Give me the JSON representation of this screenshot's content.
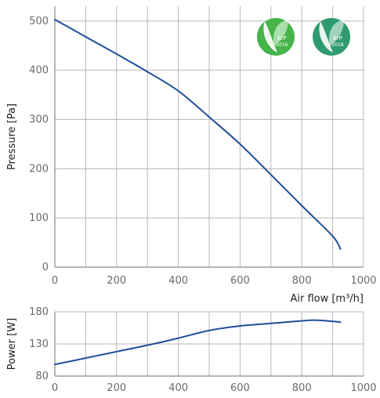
{
  "chart_data": [
    {
      "type": "line",
      "xlabel": "Air flow [m³/h]",
      "ylabel": "Pressure [Pa]",
      "xlim": [
        0,
        1000
      ],
      "ylim": [
        0,
        530
      ],
      "x_ticks": [
        "0",
        "200",
        "400",
        "600",
        "800",
        "1000"
      ],
      "y_ticks": [
        "0",
        "100",
        "200",
        "300",
        "400",
        "500"
      ],
      "grid": true,
      "series": [
        {
          "color": "#1f4f9a",
          "x": [
            0,
            100,
            200,
            300,
            400,
            500,
            600,
            700,
            800,
            900,
            925
          ],
          "y": [
            503,
            468,
            433,
            397,
            358,
            305,
            250,
            188,
            125,
            63,
            37
          ]
        }
      ]
    },
    {
      "type": "line",
      "xlabel": "",
      "ylabel": "Power [W]",
      "xlim": [
        0,
        1000
      ],
      "ylim": [
        80,
        180
      ],
      "x_ticks": [
        "0",
        "200",
        "400",
        "600",
        "800",
        "1000"
      ],
      "y_ticks": [
        "80",
        "130",
        "180"
      ],
      "grid": true,
      "series": [
        {
          "color": "#1f4f9a",
          "x": [
            0,
            100,
            200,
            300,
            400,
            500,
            600,
            700,
            800,
            850,
            925
          ],
          "y": [
            98,
            108,
            118,
            128,
            139,
            151,
            158,
            162,
            166,
            167,
            164
          ]
        }
      ]
    }
  ],
  "badges": [
    {
      "label": "ErP",
      "year": "2016",
      "color": "#45b449"
    },
    {
      "label": "ErP",
      "year": "2018",
      "color": "#2f9a6f"
    }
  ],
  "icons": {
    "badge_2016": "leaf-icon",
    "badge_2018": "leaf-icon"
  },
  "colors": {
    "grid": "#b8b8b8",
    "axis": "#8a8a8a",
    "line": "#1f4f9a"
  }
}
